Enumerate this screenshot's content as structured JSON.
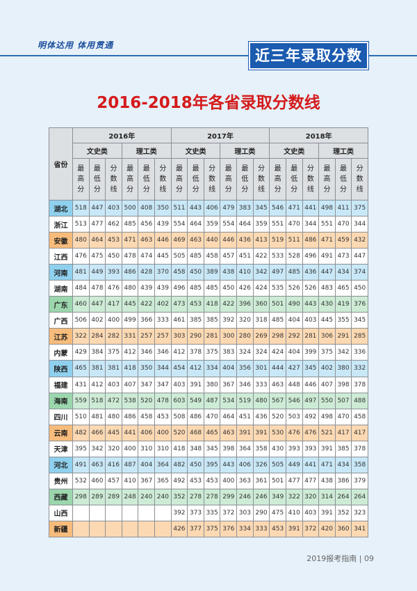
{
  "header": {
    "motto": "明体达用  体用贯通",
    "section": "近三年录取分数"
  },
  "title": "2016-2018年各省录取分数线",
  "table": {
    "province_header": "省份",
    "years": [
      "2016年",
      "2017年",
      "2018年"
    ],
    "categories": [
      "文史类",
      "理工类"
    ],
    "columns": [
      [
        "最",
        "高",
        "分"
      ],
      [
        "最",
        "低",
        "分"
      ],
      [
        "分",
        "数",
        "线"
      ]
    ],
    "rows": [
      {
        "province": "湖北",
        "color": "blue",
        "values": [
          "518",
          "447",
          "403",
          "500",
          "408",
          "350",
          "511",
          "443",
          "406",
          "479",
          "383",
          "345",
          "546",
          "471",
          "441",
          "498",
          "411",
          "375"
        ]
      },
      {
        "province": "浙江",
        "color": "white",
        "values": [
          "513",
          "477",
          "462",
          "485",
          "456",
          "439",
          "554",
          "464",
          "359",
          "554",
          "464",
          "359",
          "551",
          "470",
          "344",
          "551",
          "470",
          "344"
        ]
      },
      {
        "province": "安徽",
        "color": "orange",
        "values": [
          "480",
          "464",
          "453",
          "471",
          "463",
          "446",
          "469",
          "463",
          "440",
          "446",
          "436",
          "413",
          "519",
          "511",
          "486",
          "471",
          "459",
          "432"
        ]
      },
      {
        "province": "江西",
        "color": "white",
        "values": [
          "476",
          "475",
          "450",
          "478",
          "474",
          "445",
          "505",
          "485",
          "458",
          "457",
          "451",
          "422",
          "533",
          "528",
          "496",
          "491",
          "473",
          "447"
        ]
      },
      {
        "province": "河南",
        "color": "blue",
        "values": [
          "481",
          "449",
          "393",
          "486",
          "428",
          "370",
          "458",
          "450",
          "389",
          "438",
          "410",
          "342",
          "497",
          "485",
          "436",
          "447",
          "434",
          "374"
        ]
      },
      {
        "province": "湖南",
        "color": "white",
        "values": [
          "484",
          "478",
          "476",
          "480",
          "439",
          "439",
          "496",
          "485",
          "485",
          "450",
          "426",
          "424",
          "535",
          "526",
          "526",
          "483",
          "465",
          "450"
        ]
      },
      {
        "province": "广东",
        "color": "green",
        "values": [
          "460",
          "447",
          "417",
          "445",
          "422",
          "402",
          "473",
          "453",
          "418",
          "422",
          "396",
          "360",
          "501",
          "490",
          "443",
          "430",
          "419",
          "376"
        ]
      },
      {
        "province": "广西",
        "color": "white",
        "values": [
          "506",
          "402",
          "400",
          "499",
          "366",
          "333",
          "461",
          "385",
          "385",
          "392",
          "320",
          "318",
          "485",
          "404",
          "403",
          "445",
          "355",
          "345"
        ]
      },
      {
        "province": "江苏",
        "color": "orange",
        "values": [
          "322",
          "284",
          "282",
          "331",
          "257",
          "257",
          "303",
          "290",
          "281",
          "300",
          "280",
          "269",
          "298",
          "292",
          "281",
          "306",
          "291",
          "285"
        ]
      },
      {
        "province": "内蒙",
        "color": "white",
        "values": [
          "429",
          "384",
          "375",
          "412",
          "346",
          "346",
          "412",
          "378",
          "375",
          "383",
          "324",
          "324",
          "424",
          "404",
          "399",
          "375",
          "342",
          "336"
        ]
      },
      {
        "province": "陕西",
        "color": "blue",
        "values": [
          "465",
          "381",
          "381",
          "418",
          "350",
          "344",
          "454",
          "412",
          "334",
          "404",
          "356",
          "301",
          "444",
          "427",
          "345",
          "402",
          "380",
          "332"
        ]
      },
      {
        "province": "福建",
        "color": "white",
        "values": [
          "431",
          "412",
          "403",
          "407",
          "347",
          "347",
          "403",
          "391",
          "380",
          "367",
          "346",
          "333",
          "463",
          "448",
          "446",
          "407",
          "398",
          "378"
        ]
      },
      {
        "province": "海南",
        "color": "green",
        "values": [
          "559",
          "518",
          "472",
          "538",
          "520",
          "478",
          "603",
          "549",
          "487",
          "534",
          "519",
          "480",
          "567",
          "546",
          "497",
          "550",
          "507",
          "488"
        ]
      },
      {
        "province": "四川",
        "color": "white",
        "values": [
          "510",
          "481",
          "480",
          "486",
          "458",
          "453",
          "508",
          "486",
          "470",
          "464",
          "451",
          "436",
          "520",
          "503",
          "492",
          "498",
          "470",
          "458"
        ]
      },
      {
        "province": "云南",
        "color": "orange",
        "values": [
          "482",
          "466",
          "445",
          "441",
          "406",
          "400",
          "520",
          "468",
          "465",
          "463",
          "391",
          "391",
          "530",
          "476",
          "476",
          "521",
          "417",
          "417"
        ]
      },
      {
        "province": "天津",
        "color": "white",
        "values": [
          "395",
          "342",
          "320",
          "400",
          "310",
          "310",
          "418",
          "348",
          "345",
          "398",
          "364",
          "358",
          "430",
          "393",
          "393",
          "391",
          "385",
          "378"
        ]
      },
      {
        "province": "河北",
        "color": "blue",
        "values": [
          "491",
          "463",
          "416",
          "487",
          "404",
          "364",
          "482",
          "450",
          "395",
          "443",
          "406",
          "326",
          "505",
          "449",
          "441",
          "471",
          "434",
          "358"
        ]
      },
      {
        "province": "贵州",
        "color": "white",
        "values": [
          "532",
          "460",
          "457",
          "410",
          "367",
          "365",
          "492",
          "453",
          "453",
          "400",
          "363",
          "361",
          "501",
          "477",
          "477",
          "438",
          "386",
          "379"
        ]
      },
      {
        "province": "西藏",
        "color": "green",
        "values": [
          "298",
          "289",
          "289",
          "248",
          "240",
          "240",
          "352",
          "278",
          "278",
          "299",
          "246",
          "246",
          "349",
          "322",
          "320",
          "314",
          "264",
          "264"
        ]
      },
      {
        "province": "山西",
        "color": "white",
        "values": [
          "",
          "",
          "",
          "",
          "",
          "",
          "392",
          "373",
          "335",
          "372",
          "303",
          "290",
          "475",
          "410",
          "403",
          "391",
          "352",
          "323"
        ]
      },
      {
        "province": "新疆",
        "color": "orange",
        "values": [
          "",
          "",
          "",
          "",
          "",
          "",
          "426",
          "377",
          "375",
          "376",
          "334",
          "333",
          "453",
          "391",
          "372",
          "420",
          "360",
          "341"
        ]
      }
    ]
  },
  "footer": {
    "text": "2019报考指南 | 09"
  }
}
